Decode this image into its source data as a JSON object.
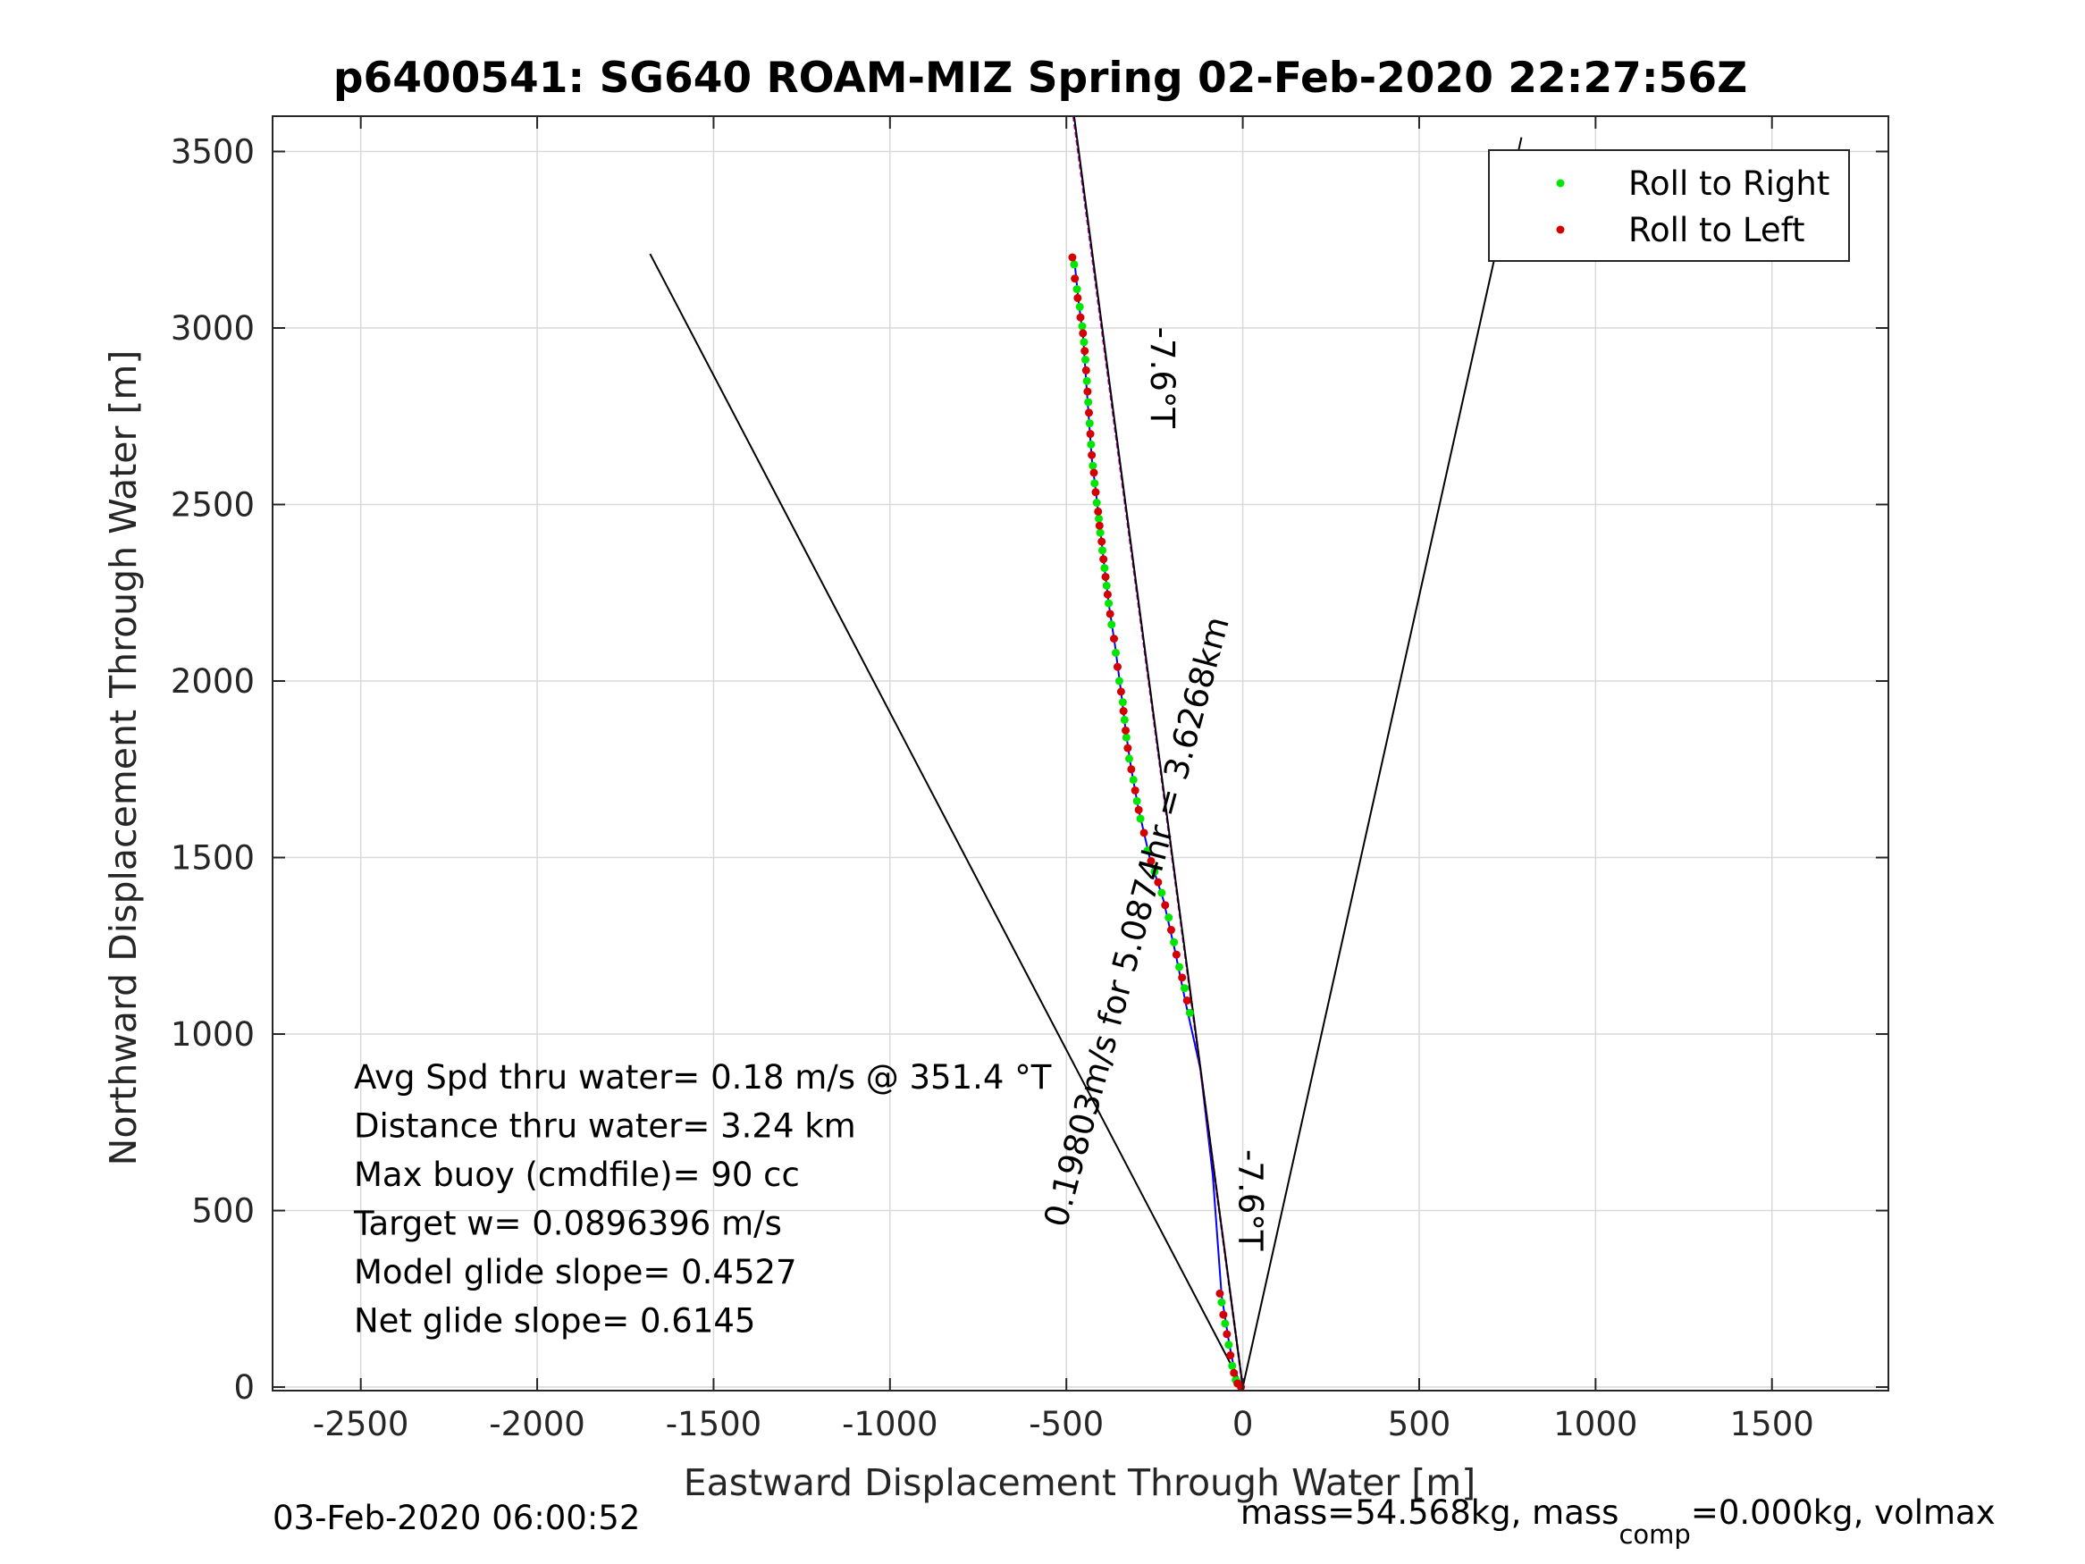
{
  "chart_data": {
    "type": "scatter",
    "title": "p6400541: SG640 ROAM-MIZ Spring 02-Feb-2020 22:27:56Z",
    "xlabel": "Eastward Displacement Through Water [m]",
    "ylabel": "Northward Displacement Through Water [m]",
    "xlim": [
      -2750,
      1830
    ],
    "ylim": [
      -10,
      3600
    ],
    "xticks": [
      -2500,
      -2000,
      -1500,
      -1000,
      -500,
      0,
      500,
      1000,
      1500
    ],
    "yticks": [
      0,
      500,
      1000,
      1500,
      2000,
      2500,
      3000,
      3500
    ],
    "grid": true,
    "legend_position": "top-right",
    "legend": [
      {
        "label": "Roll to Right",
        "color": "#00e600"
      },
      {
        "label": "Roll to Left",
        "color": "#d40000"
      }
    ],
    "series": [
      {
        "name": "Roll to Right",
        "color": "#00e600",
        "points": [
          [
            -478,
            3180
          ],
          [
            -470,
            3110
          ],
          [
            -462,
            3060
          ],
          [
            -455,
            3005
          ],
          [
            -450,
            2960
          ],
          [
            -446,
            2910
          ],
          [
            -442,
            2850
          ],
          [
            -438,
            2790
          ],
          [
            -434,
            2730
          ],
          [
            -430,
            2670
          ],
          [
            -425,
            2610
          ],
          [
            -420,
            2560
          ],
          [
            -414,
            2505
          ],
          [
            -408,
            2460
          ],
          [
            -404,
            2420
          ],
          [
            -398,
            2370
          ],
          [
            -392,
            2320
          ],
          [
            -386,
            2270
          ],
          [
            -380,
            2220
          ],
          [
            -372,
            2160
          ],
          [
            -360,
            2080
          ],
          [
            -350,
            2000
          ],
          [
            -340,
            1940
          ],
          [
            -335,
            1890
          ],
          [
            -330,
            1840
          ],
          [
            -322,
            1780
          ],
          [
            -310,
            1720
          ],
          [
            -300,
            1660
          ],
          [
            -290,
            1610
          ],
          [
            -270,
            1520
          ],
          [
            -250,
            1460
          ],
          [
            -230,
            1400
          ],
          [
            -210,
            1330
          ],
          [
            -195,
            1260
          ],
          [
            -180,
            1190
          ],
          [
            -165,
            1130
          ],
          [
            -150,
            1060
          ],
          [
            -60,
            240
          ],
          [
            -50,
            180
          ],
          [
            -40,
            120
          ],
          [
            -30,
            60
          ],
          [
            -20,
            20
          ]
        ]
      },
      {
        "name": "Roll to Left",
        "color": "#d40000",
        "points": [
          [
            -483,
            3200
          ],
          [
            -476,
            3140
          ],
          [
            -468,
            3085
          ],
          [
            -460,
            3030
          ],
          [
            -453,
            2985
          ],
          [
            -448,
            2935
          ],
          [
            -444,
            2880
          ],
          [
            -440,
            2820
          ],
          [
            -436,
            2760
          ],
          [
            -432,
            2700
          ],
          [
            -428,
            2640
          ],
          [
            -422,
            2590
          ],
          [
            -417,
            2535
          ],
          [
            -410,
            2480
          ],
          [
            -406,
            2440
          ],
          [
            -400,
            2395
          ],
          [
            -395,
            2345
          ],
          [
            -389,
            2295
          ],
          [
            -383,
            2245
          ],
          [
            -376,
            2190
          ],
          [
            -365,
            2120
          ],
          [
            -355,
            2040
          ],
          [
            -345,
            1970
          ],
          [
            -338,
            1915
          ],
          [
            -332,
            1860
          ],
          [
            -326,
            1810
          ],
          [
            -316,
            1750
          ],
          [
            -305,
            1690
          ],
          [
            -295,
            1635
          ],
          [
            -280,
            1570
          ],
          [
            -260,
            1490
          ],
          [
            -240,
            1430
          ],
          [
            -220,
            1365
          ],
          [
            -203,
            1295
          ],
          [
            -188,
            1225
          ],
          [
            -172,
            1160
          ],
          [
            -158,
            1095
          ],
          [
            -65,
            265
          ],
          [
            -55,
            205
          ],
          [
            -45,
            150
          ],
          [
            -35,
            90
          ],
          [
            -25,
            40
          ],
          [
            -15,
            10
          ],
          [
            -5,
            0
          ]
        ]
      }
    ],
    "lines": [
      {
        "name": "track",
        "color": "#0000ff",
        "points": [
          [
            -478,
            3200
          ],
          [
            -466,
            3080
          ],
          [
            -452,
            2970
          ],
          [
            -444,
            2850
          ],
          [
            -436,
            2740
          ],
          [
            -428,
            2630
          ],
          [
            -418,
            2550
          ],
          [
            -405,
            2440
          ],
          [
            -393,
            2330
          ],
          [
            -380,
            2220
          ],
          [
            -362,
            2100
          ],
          [
            -345,
            1970
          ],
          [
            -332,
            1860
          ],
          [
            -316,
            1750
          ],
          [
            -296,
            1640
          ],
          [
            -264,
            1500
          ],
          [
            -225,
            1380
          ],
          [
            -193,
            1240
          ],
          [
            -160,
            1080
          ],
          [
            -120,
            900
          ],
          [
            -85,
            600
          ],
          [
            -60,
            260
          ],
          [
            -38,
            120
          ],
          [
            -20,
            30
          ],
          [
            -5,
            0
          ]
        ]
      },
      {
        "name": "heading-line",
        "color": "#cc00cc",
        "points": [
          [
            -480,
            3600
          ],
          [
            0,
            0
          ]
        ]
      },
      {
        "name": "envelope-left",
        "color": "#000000",
        "points": [
          [
            -1680,
            3210
          ],
          [
            0,
            0
          ]
        ]
      },
      {
        "name": "envelope-right",
        "color": "#000000",
        "points": [
          [
            790,
            3540
          ],
          [
            0,
            0
          ]
        ]
      },
      {
        "name": "envelope-center",
        "color": "#000000",
        "points": [
          [
            -478,
            3600
          ],
          [
            0,
            0
          ]
        ]
      }
    ],
    "annotations": [
      {
        "text": "-7.6°T",
        "x": -260,
        "y": 2860,
        "rotation": 90
      },
      {
        "text": "0.19803m/s for 5.0874hr = 3.6268km",
        "x": -270,
        "y": 1310,
        "rotation": -75
      },
      {
        "text": "-7.6°T",
        "x": -10,
        "y": 530,
        "rotation": 90
      }
    ],
    "stats": [
      "Avg Spd thru water=  0.18 m/s @ 351.4 °T",
      "Distance thru water=  3.24 km",
      "Max buoy (cmdfile)= 90 cc",
      "Target w= 0.0896396 m/s",
      "Model glide slope= 0.4527",
      "Net glide slope= 0.6145"
    ]
  },
  "footer": {
    "left": "03-Feb-2020 06:00:52",
    "right_main": "mass=54.568kg, mass",
    "right_sub": "comp",
    "right_tail": "=0.000kg, volmax"
  }
}
